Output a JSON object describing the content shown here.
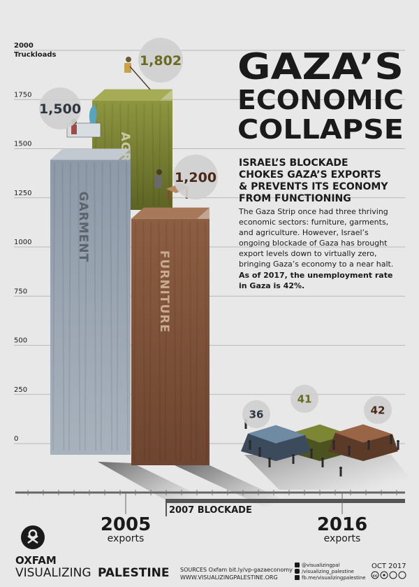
{
  "title_lines": [
    "GAZA’S",
    "ECONOMIC",
    "COLLAPSE"
  ],
  "subtitle_lines": [
    "ISRAEL’S BLOCKADE",
    "CHOKES GAZA’S EXPORTS",
    "& PREVENTS ITS ECONOMY",
    "FROM FUNCTIONING"
  ],
  "body_lines": [
    "The Gaza Strip once had three thriving",
    "economic sectors: furniture, garments,",
    "and agriculture. However, Israel’s",
    "ongoing blockade of Gaza has brought",
    "export levels down to virtually zero,",
    "bringing Gaza’s economy to a near halt."
  ],
  "body_bold_lines": [
    "As of 2017, the unemployment rate",
    "in Gaza is 42%."
  ],
  "timeline": {
    "year_2005": "2005",
    "label_2005": "exports",
    "blockade_label": "2007 BLOCKADE",
    "year_2016": "2016",
    "label_2016": "exports"
  },
  "footer": {
    "org1": "OXFAM",
    "org2_light": "VISUALIZING",
    "org2_bold": "PALESTINE",
    "sources_line1": "SOURCES Oxfam bit.ly/vp-gazaeconomy",
    "sources_line2": "WWW.VISUALIZINGPALESTINE.ORG",
    "social": [
      "@visualizingpal",
      "/visualizing_palestine",
      "fb.me/visualizingpalestine"
    ],
    "date": "OCT 2017",
    "license": "cc"
  },
  "colors": {
    "background": "#e8e8e8",
    "text": "#1a1a1a",
    "garment": "#8e99a6",
    "agriculture": "#8a8f3a",
    "furniture": "#8a5a3e",
    "gridline": "#a8a8a8",
    "bubble": "#cfcfcf",
    "value_garment": "#2d3540",
    "value_agriculture": "#6b6a22",
    "value_furniture": "#4a2818",
    "timeline": "#666666"
  },
  "chart_data": {
    "type": "bar",
    "ylabel_lines": [
      "2000",
      "Truckloads"
    ],
    "yticks": [
      0,
      250,
      500,
      750,
      1000,
      1250,
      1500,
      1750
    ],
    "ylim": [
      0,
      2000
    ],
    "series": [
      {
        "period": "2005",
        "points": [
          {
            "category": "GARMENT",
            "value": 1500,
            "label": "1,500"
          },
          {
            "category": "AGRICULTURE",
            "value": 1802,
            "label": "1,802"
          },
          {
            "category": "FURNITURE",
            "value": 1200,
            "label": "1,200"
          }
        ]
      },
      {
        "period": "2016",
        "points": [
          {
            "category": "GARMENT",
            "value": 36,
            "label": "36"
          },
          {
            "category": "AGRICULTURE",
            "value": 41,
            "label": "41"
          },
          {
            "category": "FURNITURE",
            "value": 42,
            "label": "42"
          }
        ]
      }
    ]
  }
}
